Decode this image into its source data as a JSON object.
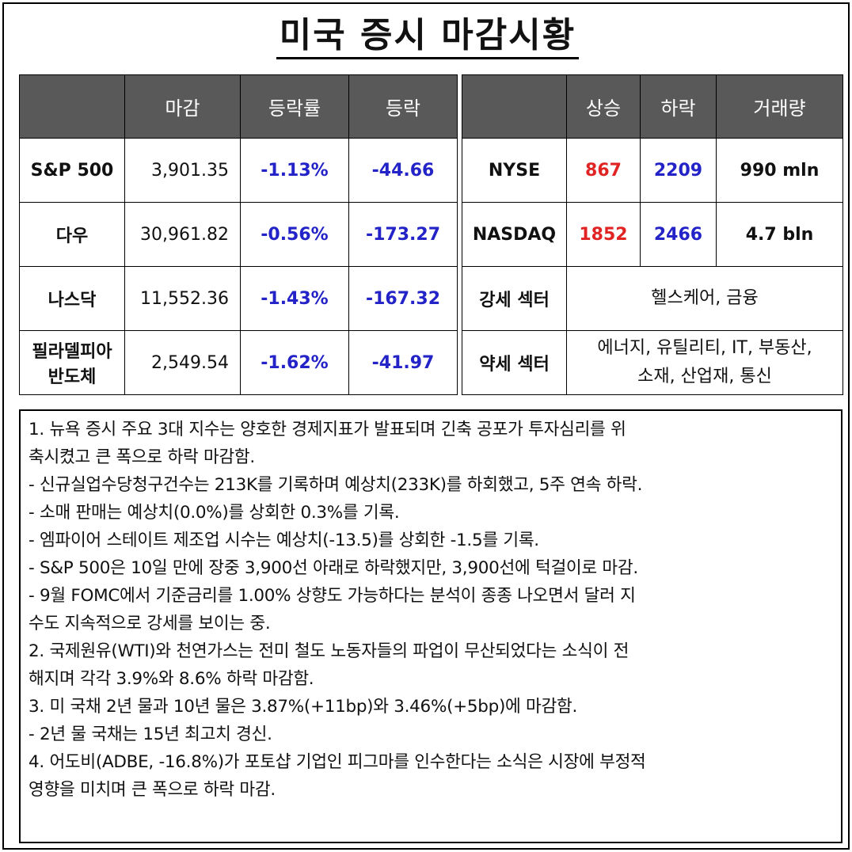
{
  "title": "미국 증시 마감시황",
  "index_table": {
    "headers": [
      "",
      "마감",
      "등락률",
      "등락"
    ],
    "rows": [
      {
        "name": "S&P 500",
        "close": "3,901.35",
        "rate": "-1.13%",
        "change": "-44.66"
      },
      {
        "name": "다우",
        "close": "30,961.82",
        "rate": "-0.56%",
        "change": "-173.27"
      },
      {
        "name": "나스닥",
        "close": "11,552.36",
        "rate": "-1.43%",
        "change": "-167.32"
      },
      {
        "name_line1": "필라델피아",
        "name_line2": "반도체",
        "close": "2,549.54",
        "rate": "-1.62%",
        "change": "-41.97"
      }
    ]
  },
  "breadth_table": {
    "headers": [
      "",
      "상승",
      "하락",
      "거래량"
    ],
    "rows": [
      {
        "exchange": "NYSE",
        "up": "867",
        "down": "2209",
        "volume": "990 mln"
      },
      {
        "exchange": "NASDAQ",
        "up": "1852",
        "down": "2466",
        "volume": "4.7 bln"
      }
    ],
    "strong_sector_label": "강세 섹터",
    "strong_sector_value": "헬스케어, 금융",
    "weak_sector_label": "약세 섹터",
    "weak_sector_line1": "에너지, 유틸리티, IT, 부동산,",
    "weak_sector_line2": "소재, 산업재, 통신"
  },
  "notes": [
    "1. 뉴욕 증시 주요 3대 지수는 양호한 경제지표가 발표되며 긴축 공포가 투자심리를 위",
    "축시켰고 큰 폭으로 하락 마감함.",
    "- 신규실업수당청구건수는 213K를 기록하며 예상치(233K)를 하회했고, 5주 연속 하락.",
    "- 소매 판매는 예상치(0.0%)를 상회한 0.3%를 기록.",
    "- 엠파이어 스테이트 제조업 시수는 예상치(-13.5)를 상회한 -1.5를 기록.",
    "- S&P 500은 10일 만에 장중 3,900선 아래로 하락했지만, 3,900선에 턱걸이로 마감.",
    "- 9월 FOMC에서 기준금리를 1.00% 상향도 가능하다는 분석이 종종 나오면서 달러 지",
    "수도 지속적으로 강세를 보이는 중.",
    "2. 국제원유(WTI)와 천연가스는 전미 철도 노동자들의 파업이 무산되었다는 소식이 전",
    "해지며 각각 3.9%와 8.6% 하락 마감함.",
    "3. 미 국채 2년 물과 10년 물은 3.87%(+11bp)와 3.46%(+5bp)에 마감함.",
    "- 2년 물 국채는 15년 최고치 경신.",
    "4. 어도비(ADBE, -16.8%)가 포토샵 기업인 피그마를 인수한다는 소식은 시장에 부정적",
    "영향을 미치며 큰 폭으로 하락 마감."
  ],
  "colors": {
    "header_bg": "#595959",
    "negative_blue": "#2323c8",
    "advance_red": "#e02424"
  }
}
